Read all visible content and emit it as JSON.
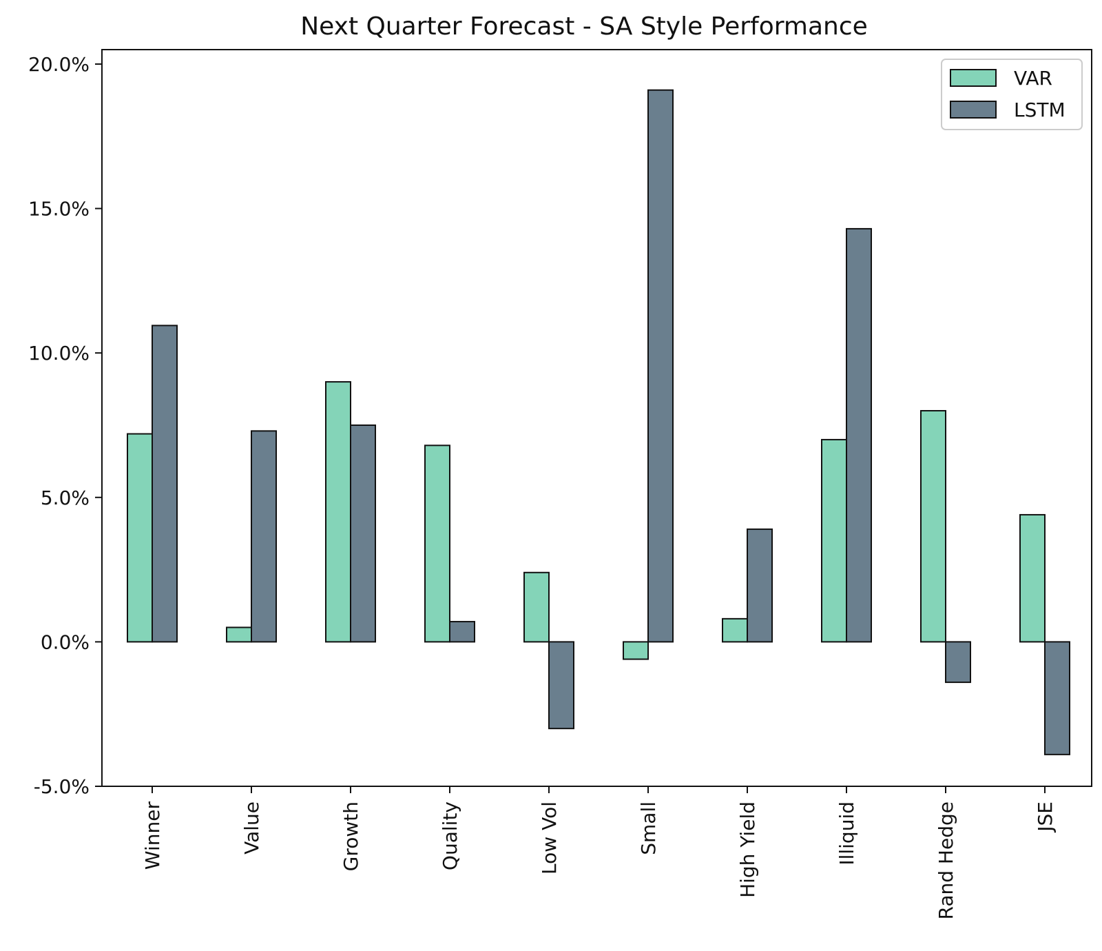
{
  "chart_data": {
    "type": "bar",
    "title": "Next Quarter Forecast - SA Style Performance",
    "xlabel": "",
    "ylabel": "",
    "categories": [
      "Winner",
      "Value",
      "Growth",
      "Quality",
      "Low Vol",
      "Small",
      "High Yield",
      "Illiquid",
      "Rand Hedge",
      "JSE"
    ],
    "series": [
      {
        "name": "VAR",
        "color": "#84d4b8",
        "values": [
          7.2,
          0.5,
          9.0,
          6.8,
          2.4,
          -0.6,
          0.8,
          7.0,
          8.0,
          4.4
        ]
      },
      {
        "name": "LSTM",
        "color": "#6a7f8e",
        "values": [
          10.95,
          7.3,
          7.5,
          0.7,
          -3.0,
          19.1,
          3.9,
          14.3,
          -1.4,
          -3.9
        ]
      }
    ],
    "ylim": [
      -5,
      20.5
    ],
    "yticks": [
      -5,
      0,
      5,
      10,
      15,
      20
    ],
    "ytick_labels": [
      "-5.0%",
      "0.0%",
      "5.0%",
      "10.0%",
      "15.0%",
      "20.0%"
    ],
    "grid": false,
    "legend_position": "top-right",
    "edge_color": "#111111"
  }
}
